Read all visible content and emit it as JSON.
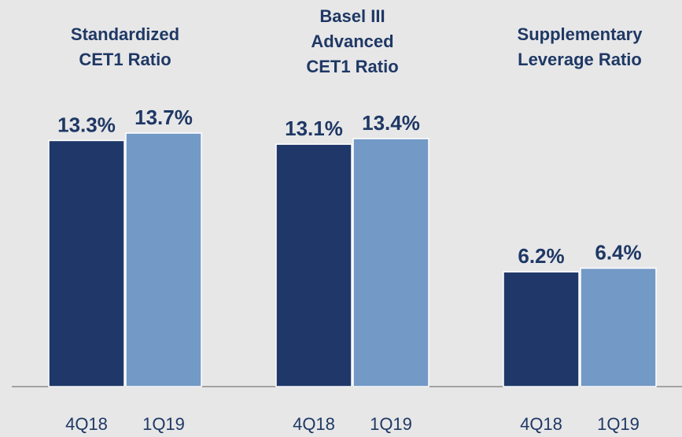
{
  "chart_data": {
    "type": "bar",
    "categories": [
      [
        "Standardized",
        "CET1 Ratio"
      ],
      [
        "Basel III",
        "Advanced",
        "CET1 Ratio"
      ],
      [
        "Supplementary",
        "Leverage Ratio"
      ]
    ],
    "series": [
      {
        "name": "4Q18",
        "color": "#1f3869",
        "values": [
          13.3,
          13.1,
          6.2
        ],
        "value_labels": [
          "13.3%",
          "13.1%",
          "6.2%"
        ]
      },
      {
        "name": "1Q19",
        "color": "#7399c6",
        "values": [
          13.7,
          13.4,
          6.4
        ],
        "value_labels": [
          "13.7%",
          "13.4%",
          "6.4%"
        ]
      }
    ]
  }
}
